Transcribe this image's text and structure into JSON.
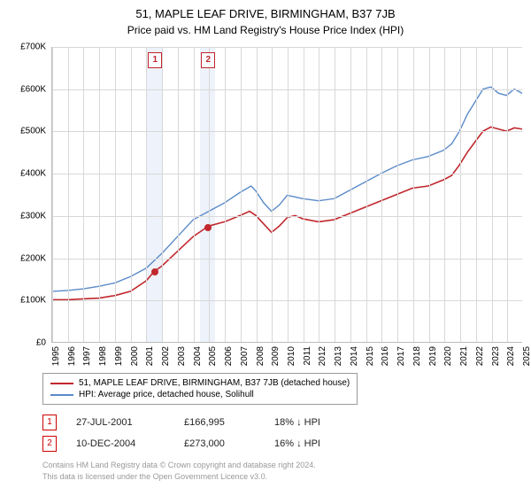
{
  "title": "51, MAPLE LEAF DRIVE, BIRMINGHAM, B37 7JB",
  "subtitle": "Price paid vs. HM Land Registry's House Price Index (HPI)",
  "chart": {
    "type": "line",
    "background_color": "#ffffff",
    "grid_color": "#d8d8d8",
    "axis_color": "#bbbbbb",
    "ylim": [
      0,
      700000
    ],
    "ytick_step": 100000,
    "y_labels": [
      "£0",
      "£100K",
      "£200K",
      "£300K",
      "£400K",
      "£500K",
      "£600K",
      "£700K"
    ],
    "x_min": 1995,
    "x_max": 2025,
    "x_labels": [
      "1995",
      "1996",
      "1997",
      "1998",
      "1999",
      "2000",
      "2001",
      "2002",
      "2003",
      "2004",
      "2005",
      "2006",
      "2007",
      "2008",
      "2009",
      "2010",
      "2011",
      "2012",
      "2013",
      "2014",
      "2015",
      "2016",
      "2017",
      "2018",
      "2019",
      "2020",
      "2021",
      "2022",
      "2023",
      "2024",
      "2025"
    ],
    "highlight_bands": [
      {
        "from": 2001.0,
        "to": 2002.0,
        "color": "#eef2fa"
      },
      {
        "from": 2004.4,
        "to": 2005.4,
        "color": "#eef2fa"
      }
    ],
    "series": [
      {
        "name": "property",
        "color": "#c1272d",
        "width": 1.6,
        "label": "51, MAPLE LEAF DRIVE, BIRMINGHAM, B37 7JB (detached house)",
        "points": [
          [
            1995,
            100000
          ],
          [
            1996,
            100000
          ],
          [
            1997,
            102000
          ],
          [
            1998,
            104000
          ],
          [
            1999,
            110000
          ],
          [
            2000,
            120000
          ],
          [
            2001,
            145000
          ],
          [
            2001.5,
            167000
          ],
          [
            2002,
            180000
          ],
          [
            2003,
            215000
          ],
          [
            2004,
            250000
          ],
          [
            2004.9,
            273000
          ],
          [
            2005,
            275000
          ],
          [
            2006,
            285000
          ],
          [
            2007,
            300000
          ],
          [
            2007.6,
            310000
          ],
          [
            2008,
            300000
          ],
          [
            2008.5,
            280000
          ],
          [
            2009,
            260000
          ],
          [
            2009.5,
            275000
          ],
          [
            2010,
            295000
          ],
          [
            2010.5,
            300000
          ],
          [
            2011,
            292000
          ],
          [
            2012,
            285000
          ],
          [
            2013,
            290000
          ],
          [
            2014,
            305000
          ],
          [
            2015,
            320000
          ],
          [
            2016,
            335000
          ],
          [
            2017,
            350000
          ],
          [
            2018,
            365000
          ],
          [
            2019,
            370000
          ],
          [
            2020,
            385000
          ],
          [
            2020.5,
            395000
          ],
          [
            2021,
            420000
          ],
          [
            2021.5,
            450000
          ],
          [
            2022,
            475000
          ],
          [
            2022.5,
            500000
          ],
          [
            2023,
            510000
          ],
          [
            2023.5,
            505000
          ],
          [
            2024,
            500000
          ],
          [
            2024.5,
            508000
          ],
          [
            2025,
            505000
          ]
        ]
      },
      {
        "name": "hpi",
        "color": "#5b8bc9",
        "width": 1.4,
        "label": "HPI: Average price, detached house, Solihull",
        "points": [
          [
            1995,
            120000
          ],
          [
            1996,
            122000
          ],
          [
            1997,
            126000
          ],
          [
            1998,
            132000
          ],
          [
            1999,
            140000
          ],
          [
            2000,
            155000
          ],
          [
            2001,
            175000
          ],
          [
            2002,
            210000
          ],
          [
            2003,
            250000
          ],
          [
            2004,
            290000
          ],
          [
            2005,
            310000
          ],
          [
            2006,
            330000
          ],
          [
            2007,
            355000
          ],
          [
            2007.7,
            370000
          ],
          [
            2008,
            358000
          ],
          [
            2008.5,
            330000
          ],
          [
            2009,
            310000
          ],
          [
            2009.5,
            325000
          ],
          [
            2010,
            348000
          ],
          [
            2011,
            340000
          ],
          [
            2012,
            335000
          ],
          [
            2013,
            340000
          ],
          [
            2014,
            360000
          ],
          [
            2015,
            380000
          ],
          [
            2016,
            400000
          ],
          [
            2017,
            418000
          ],
          [
            2018,
            432000
          ],
          [
            2019,
            440000
          ],
          [
            2020,
            455000
          ],
          [
            2020.5,
            470000
          ],
          [
            2021,
            500000
          ],
          [
            2021.5,
            540000
          ],
          [
            2022,
            570000
          ],
          [
            2022.5,
            600000
          ],
          [
            2023,
            605000
          ],
          [
            2023.5,
            590000
          ],
          [
            2024,
            585000
          ],
          [
            2024.5,
            600000
          ],
          [
            2025,
            590000
          ]
        ]
      }
    ],
    "sale_markers": [
      {
        "n": "1",
        "x": 2001.56,
        "y": 166995,
        "color": "#c1272d"
      },
      {
        "n": "2",
        "x": 2004.94,
        "y": 273000,
        "color": "#c1272d"
      }
    ]
  },
  "legend": {
    "items": [
      {
        "color": "#c1272d",
        "label": "51, MAPLE LEAF DRIVE, BIRMINGHAM, B37 7JB (detached house)"
      },
      {
        "color": "#5b8bc9",
        "label": "HPI: Average price, detached house, Solihull"
      }
    ]
  },
  "sales": [
    {
      "n": "1",
      "date": "27-JUL-2001",
      "price": "£166,995",
      "diff": "18% ↓ HPI"
    },
    {
      "n": "2",
      "date": "10-DEC-2004",
      "price": "£273,000",
      "diff": "16% ↓ HPI"
    }
  ],
  "footer": {
    "line1": "Contains HM Land Registry data © Crown copyright and database right 2024.",
    "line2": "This data is licensed under the Open Government Licence v3.0."
  }
}
